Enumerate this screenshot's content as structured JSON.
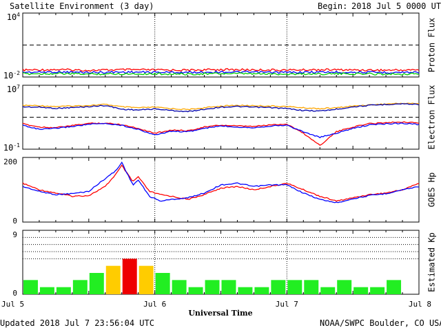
{
  "header": {
    "title": "Satellite Environment (3 day)",
    "begin_label": "Begin:",
    "begin_value": "2018 Jul 5 0000 UTC"
  },
  "footer": {
    "updated": "Updated 2018 Jul  7 23:56:04 UTC",
    "credit": "NOAA/SWPC Boulder, CO USA"
  },
  "chart_data": [
    {
      "type": "line",
      "panel": "proton-flux",
      "ylabel": "Proton Flux",
      "y_scale": "log",
      "ylim": [
        0.01,
        10000
      ],
      "y_ticks": [
        {
          "value": 10000,
          "base": "10",
          "exp": "4"
        },
        {
          "value": 0.01,
          "base": "10",
          "exp": "-2"
        }
      ],
      "threshold": 10,
      "series": [
        {
          "color": "#ff0000",
          "x": [
            0,
            6,
            12,
            18,
            24,
            30,
            36,
            42,
            48,
            54,
            60,
            66,
            72
          ],
          "values": [
            0.045,
            0.05,
            0.042,
            0.048,
            0.046,
            0.044,
            0.05,
            0.047,
            0.045,
            0.049,
            0.046,
            0.044,
            0.047
          ]
        },
        {
          "color": "#0000ff",
          "x": [
            0,
            6,
            12,
            18,
            24,
            30,
            36,
            42,
            48,
            54,
            60,
            66,
            72
          ],
          "values": [
            0.028,
            0.03,
            0.027,
            0.029,
            0.028,
            0.027,
            0.03,
            0.028,
            0.027,
            0.029,
            0.028,
            0.027,
            0.028
          ]
        },
        {
          "color": "#00cc00",
          "x": [
            0,
            6,
            12,
            18,
            24,
            30,
            36,
            42,
            48,
            54,
            60,
            66,
            72
          ],
          "values": [
            0.02,
            0.021,
            0.019,
            0.02,
            0.02,
            0.019,
            0.021,
            0.02,
            0.019,
            0.02,
            0.02,
            0.019,
            0.02
          ]
        }
      ]
    },
    {
      "type": "line",
      "panel": "electron-flux",
      "ylabel": "Electron Flux",
      "y_scale": "log",
      "ylim": [
        0.1,
        10000000
      ],
      "y_ticks": [
        {
          "value": 10000000,
          "base": "10",
          "exp": "7"
        },
        {
          "value": 0.1,
          "base": "10",
          "exp": "-1"
        }
      ],
      "threshold": 1000,
      "series": [
        {
          "color": "#ffa500",
          "x": [
            0,
            3,
            6,
            9,
            12,
            15,
            18,
            21,
            24,
            27,
            30,
            33,
            36,
            39,
            42,
            45,
            48,
            51,
            54,
            57,
            60,
            63,
            66,
            69,
            72
          ],
          "values": [
            30000,
            28000,
            22000,
            25000,
            30000,
            40000,
            20000,
            15000,
            18000,
            12000,
            9000,
            15000,
            25000,
            30000,
            28000,
            25000,
            22000,
            15000,
            12000,
            15000,
            25000,
            35000,
            45000,
            55000,
            50000
          ]
        },
        {
          "color": "#0000aa",
          "x": [
            0,
            3,
            6,
            9,
            12,
            15,
            18,
            21,
            24,
            27,
            30,
            33,
            36,
            39,
            42,
            45,
            48,
            51,
            54,
            57,
            60,
            63,
            66,
            69,
            72
          ],
          "values": [
            20000,
            18000,
            13000,
            16000,
            21000,
            30000,
            10000,
            8000,
            11000,
            7000,
            5000,
            10000,
            18000,
            22000,
            18000,
            16000,
            12000,
            7000,
            6000,
            10000,
            20000,
            30000,
            40000,
            48000,
            40000
          ]
        },
        {
          "color": "#ff0000",
          "x": [
            0,
            3,
            6,
            9,
            12,
            15,
            18,
            21,
            24,
            27,
            30,
            33,
            36,
            39,
            42,
            45,
            48,
            51,
            54,
            57,
            60,
            63,
            66,
            69,
            72
          ],
          "values": [
            150,
            60,
            50,
            90,
            170,
            180,
            120,
            40,
            10,
            25,
            20,
            60,
            100,
            80,
            70,
            110,
            140,
            10,
            0.3,
            15,
            60,
            160,
            210,
            260,
            190
          ]
        },
        {
          "color": "#0000ff",
          "x": [
            0,
            3,
            6,
            9,
            12,
            15,
            18,
            21,
            24,
            27,
            30,
            33,
            36,
            39,
            42,
            45,
            48,
            51,
            54,
            57,
            60,
            63,
            66,
            69,
            72
          ],
          "values": [
            100,
            30,
            40,
            70,
            130,
            160,
            100,
            30,
            6,
            18,
            15,
            40,
            80,
            60,
            50,
            80,
            100,
            15,
            3,
            10,
            40,
            110,
            150,
            180,
            120
          ]
        }
      ]
    },
    {
      "type": "line",
      "panel": "goes-hp",
      "ylabel": "GOES Hp",
      "ylim": [
        0,
        200
      ],
      "y_ticks": [
        {
          "value": 200,
          "label": "200"
        },
        {
          "value": 0,
          "label": "0"
        }
      ],
      "series": [
        {
          "color": "#ff0000",
          "x": [
            0,
            3,
            6,
            9,
            12,
            15,
            17,
            18,
            20,
            21,
            23,
            25,
            27,
            30,
            33,
            36,
            39,
            42,
            45,
            48,
            51,
            54,
            57,
            60,
            63,
            66,
            69,
            72
          ],
          "values": [
            120,
            100,
            90,
            80,
            82,
            110,
            150,
            175,
            125,
            140,
            95,
            85,
            80,
            70,
            85,
            105,
            110,
            100,
            110,
            120,
            100,
            80,
            65,
            75,
            85,
            90,
            100,
            120
          ]
        },
        {
          "color": "#0000ff",
          "x": [
            0,
            3,
            6,
            9,
            12,
            15,
            17,
            18,
            20,
            21,
            23,
            25,
            27,
            30,
            33,
            36,
            39,
            42,
            45,
            48,
            51,
            54,
            57,
            60,
            63,
            66,
            69,
            72
          ],
          "values": [
            110,
            95,
            85,
            88,
            95,
            135,
            160,
            185,
            115,
            130,
            80,
            65,
            70,
            75,
            90,
            115,
            120,
            110,
            115,
            115,
            90,
            70,
            60,
            72,
            82,
            88,
            100,
            110
          ]
        }
      ]
    },
    {
      "type": "bar",
      "panel": "estimated-kp",
      "ylabel": "Estimated Kp",
      "ylim": [
        0,
        9
      ],
      "y_ticks": [
        {
          "value": 9,
          "label": "9"
        },
        {
          "value": 0,
          "label": "0"
        }
      ],
      "x_ticks": [
        "Jul 5",
        "Jul 6",
        "Jul 7",
        "Jul 8"
      ],
      "xlabel": "Universal Time",
      "values": [
        2,
        1,
        1,
        2,
        3,
        4,
        5,
        4,
        3,
        2,
        1,
        2,
        2,
        1,
        1,
        2,
        2,
        2,
        1,
        2,
        1,
        1,
        2,
        0
      ],
      "colors": {
        "quiet": "#22ee22",
        "active": "#ffcc00",
        "storm": "#ee0000"
      }
    }
  ]
}
